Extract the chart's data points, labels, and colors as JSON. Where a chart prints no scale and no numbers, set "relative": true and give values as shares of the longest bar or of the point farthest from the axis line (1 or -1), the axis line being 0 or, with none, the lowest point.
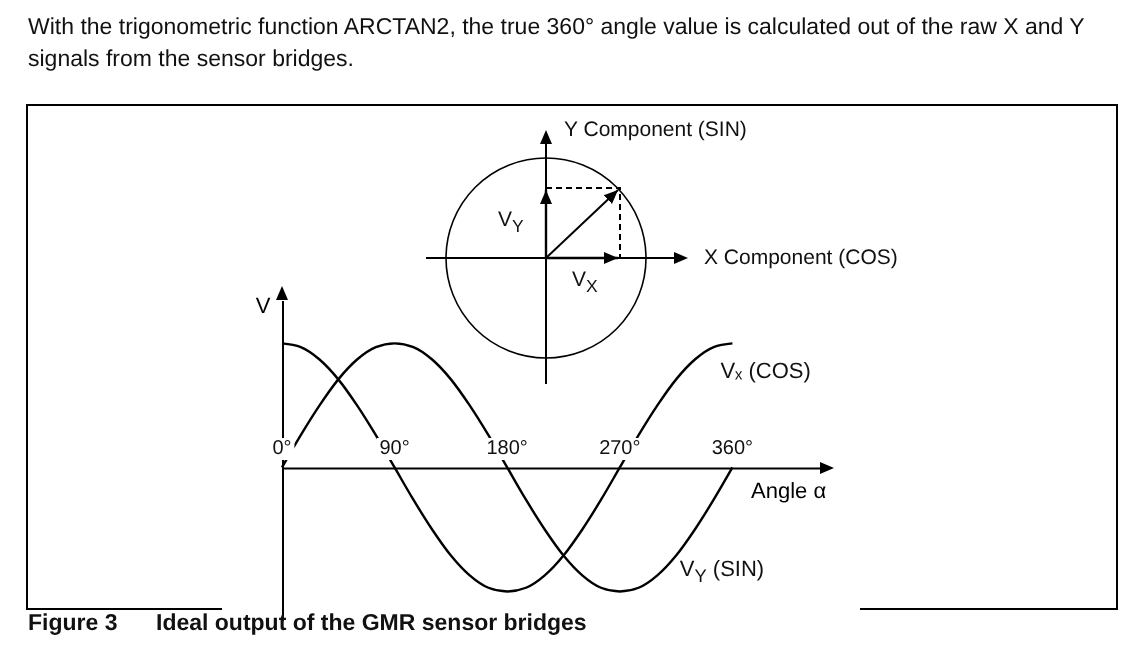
{
  "chart_data": {
    "type": "line",
    "title": "With the trigonometric function ARCTAN2, the true 360° angle value is calculated out of the raw X and Y signals from the sensor bridges.",
    "xlabel": "Angle α",
    "ylabel": "V",
    "annotations": [
      "Figure 3",
      "Ideal output of the GMR sensor bridges",
      "Y Component (SIN)",
      "X Component (COS)",
      "V$_{Y}$",
      "V$_{X}$"
    ],
    "xlim": [
      0,
      430
    ],
    "x": [
      0,
      15,
      30,
      45,
      60,
      75,
      90,
      105,
      120,
      135,
      150,
      165,
      180,
      195,
      210,
      225,
      240,
      255,
      270,
      285,
      300,
      315,
      330,
      345,
      360
    ],
    "xticks": [
      {
        "value": 0,
        "label": "0°"
      },
      {
        "value": 90,
        "label": "90°"
      },
      {
        "value": 180,
        "label": "180°"
      },
      {
        "value": 270,
        "label": "270°"
      },
      {
        "value": 360,
        "label": "360°"
      }
    ],
    "relative": true,
    "tick_labels": "x",
    "grid": false,
    "marker": "none",
    "line_style": "solid",
    "series": [
      {
        "name": "Vₓ (COS)",
        "color": "#000000",
        "values": [
          1,
          0.97,
          0.87,
          0.71,
          0.5,
          0.26,
          0,
          -0.26,
          -0.5,
          -0.71,
          -0.87,
          -0.97,
          -1,
          -0.97,
          -0.87,
          -0.71,
          -0.5,
          -0.26,
          0,
          0.26,
          0.5,
          0.71,
          0.87,
          0.97,
          1
        ]
      },
      {
        "name": "V$_{Y}$ (SIN)",
        "color": "#000000",
        "values": [
          0,
          0.26,
          0.5,
          0.71,
          0.87,
          0.97,
          1,
          0.97,
          0.87,
          0.71,
          0.5,
          0.26,
          0,
          -0.26,
          -0.5,
          -0.71,
          -0.87,
          -0.97,
          -1,
          -0.97,
          -0.87,
          -0.71,
          -0.5,
          -0.26,
          0
        ]
      }
    ]
  }
}
